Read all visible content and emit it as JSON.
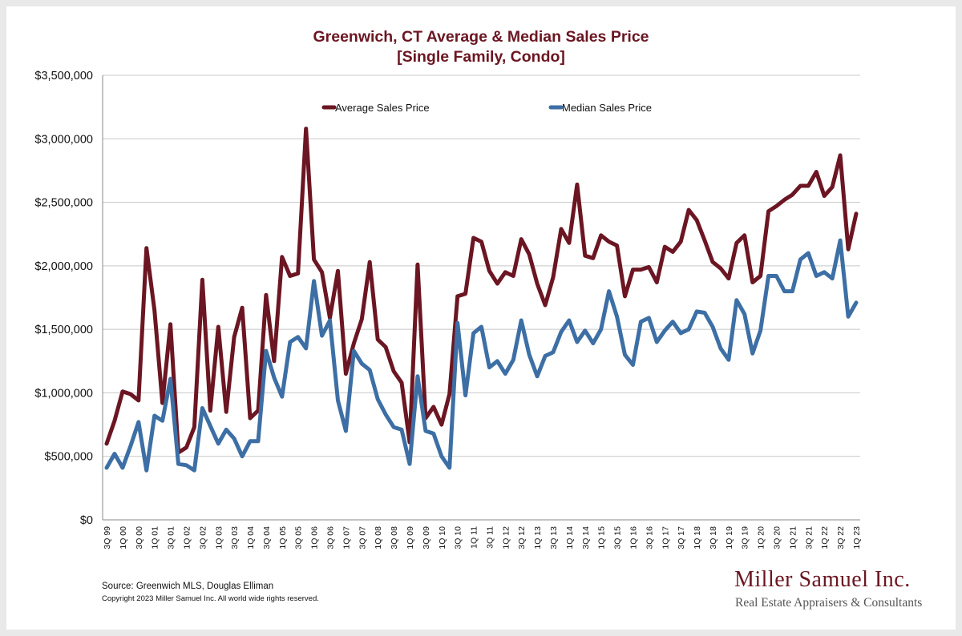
{
  "title_line1": "Greenwich, CT Average & Median Sales Price",
  "title_line2": "[Single Family, Condo]",
  "source": "Source: Greenwich MLS, Douglas Elliman",
  "copyright": "Copyright 2023 Miller Samuel Inc.  All world wide rights reserved.",
  "logo": {
    "name": "Miller Samuel Inc.",
    "tagline": "Real Estate Appraisers & Consultants"
  },
  "colors": {
    "average": "#6b1622",
    "median": "#3d6fa5",
    "grid": "#c8c8c8"
  },
  "chart_data": {
    "type": "line",
    "title": "Greenwich, CT Average & Median Sales Price [Single Family, Condo]",
    "ylim": [
      0,
      3500000
    ],
    "grid": "horizontal",
    "legend_position": "top-center",
    "y_ticks": [
      {
        "value": 0,
        "label": "$0"
      },
      {
        "value": 500000,
        "label": "$500,000"
      },
      {
        "value": 1000000,
        "label": "$1,000,000"
      },
      {
        "value": 1500000,
        "label": "$1,500,000"
      },
      {
        "value": 2000000,
        "label": "$2,000,000"
      },
      {
        "value": 2500000,
        "label": "$2,500,000"
      },
      {
        "value": 3000000,
        "label": "$3,000,000"
      },
      {
        "value": 3500000,
        "label": "$3,500,000"
      }
    ],
    "x_tick_labels": [
      {
        "index": 0,
        "label": "3Q 99"
      },
      {
        "index": 2,
        "label": "1Q 00"
      },
      {
        "index": 4,
        "label": "3Q 00"
      },
      {
        "index": 6,
        "label": "1Q 01"
      },
      {
        "index": 8,
        "label": "3Q 01"
      },
      {
        "index": 10,
        "label": "1Q 02"
      },
      {
        "index": 12,
        "label": "3Q 02"
      },
      {
        "index": 14,
        "label": "1Q 03"
      },
      {
        "index": 16,
        "label": "3Q 03"
      },
      {
        "index": 18,
        "label": "1Q 04"
      },
      {
        "index": 20,
        "label": "3Q 04"
      },
      {
        "index": 22,
        "label": "1Q 05"
      },
      {
        "index": 24,
        "label": "3Q 05"
      },
      {
        "index": 26,
        "label": "1Q 06"
      },
      {
        "index": 28,
        "label": "3Q 06"
      },
      {
        "index": 30,
        "label": "1Q 07"
      },
      {
        "index": 32,
        "label": "3Q 07"
      },
      {
        "index": 34,
        "label": "1Q 08"
      },
      {
        "index": 36,
        "label": "3Q 08"
      },
      {
        "index": 38,
        "label": "1Q 09"
      },
      {
        "index": 40,
        "label": "3Q 09"
      },
      {
        "index": 42,
        "label": "1Q 10"
      },
      {
        "index": 44,
        "label": "3Q 10"
      },
      {
        "index": 46,
        "label": "1Q 11"
      },
      {
        "index": 48,
        "label": "3Q 11"
      },
      {
        "index": 50,
        "label": "1Q 12"
      },
      {
        "index": 52,
        "label": "3Q 12"
      },
      {
        "index": 54,
        "label": "1Q 13"
      },
      {
        "index": 56,
        "label": "3Q 13"
      },
      {
        "index": 58,
        "label": "1Q 14"
      },
      {
        "index": 60,
        "label": "3Q 14"
      },
      {
        "index": 62,
        "label": "1Q 15"
      },
      {
        "index": 64,
        "label": "3Q 15"
      },
      {
        "index": 66,
        "label": "1Q 16"
      },
      {
        "index": 68,
        "label": "3Q 16"
      },
      {
        "index": 70,
        "label": "1Q 17"
      },
      {
        "index": 72,
        "label": "3Q 17"
      },
      {
        "index": 74,
        "label": "1Q 18"
      },
      {
        "index": 76,
        "label": "3Q 18"
      },
      {
        "index": 78,
        "label": "1Q 19"
      },
      {
        "index": 80,
        "label": "3Q 19"
      },
      {
        "index": 82,
        "label": "1Q 20"
      },
      {
        "index": 84,
        "label": "3Q 20"
      },
      {
        "index": 86,
        "label": "1Q 21"
      },
      {
        "index": 88,
        "label": "3Q 21"
      },
      {
        "index": 90,
        "label": "1Q 22"
      },
      {
        "index": 92,
        "label": "3Q 22"
      },
      {
        "index": 94,
        "label": "1Q 23"
      }
    ],
    "series": [
      {
        "name": "Average Sales Price",
        "values": [
          600000,
          780000,
          1010000,
          990000,
          940000,
          2140000,
          1650000,
          920000,
          1540000,
          530000,
          570000,
          730000,
          1890000,
          860000,
          1520000,
          850000,
          1440000,
          1670000,
          800000,
          860000,
          1770000,
          1250000,
          2070000,
          1920000,
          1940000,
          3080000,
          2050000,
          1950000,
          1590000,
          1960000,
          1150000,
          1390000,
          1580000,
          2030000,
          1420000,
          1360000,
          1170000,
          1080000,
          610000,
          2010000,
          800000,
          890000,
          750000,
          990000,
          1760000,
          1780000,
          2220000,
          2190000,
          1960000,
          1860000,
          1950000,
          1920000,
          2210000,
          2090000,
          1860000,
          1690000,
          1910000,
          2290000,
          2180000,
          2640000,
          2080000,
          2060000,
          2240000,
          2190000,
          2160000,
          1760000,
          1970000,
          1970000,
          1990000,
          1870000,
          2150000,
          2110000,
          2190000,
          2440000,
          2360000,
          2200000,
          2030000,
          1980000,
          1900000,
          2180000,
          2240000,
          1870000,
          1920000,
          2430000,
          2470000,
          2520000,
          2560000,
          2630000,
          2630000,
          2740000,
          2550000,
          2620000,
          2870000,
          2130000,
          2410000
        ]
      },
      {
        "name": "Median Sales Price",
        "values": [
          410000,
          520000,
          410000,
          580000,
          770000,
          390000,
          820000,
          780000,
          1110000,
          440000,
          430000,
          390000,
          880000,
          740000,
          600000,
          710000,
          640000,
          500000,
          620000,
          620000,
          1330000,
          1120000,
          970000,
          1400000,
          1440000,
          1350000,
          1880000,
          1450000,
          1570000,
          940000,
          700000,
          1330000,
          1230000,
          1180000,
          950000,
          830000,
          730000,
          710000,
          440000,
          1130000,
          700000,
          680000,
          500000,
          410000,
          1550000,
          980000,
          1470000,
          1520000,
          1200000,
          1250000,
          1150000,
          1260000,
          1570000,
          1300000,
          1130000,
          1290000,
          1320000,
          1480000,
          1570000,
          1400000,
          1490000,
          1390000,
          1500000,
          1800000,
          1600000,
          1300000,
          1220000,
          1560000,
          1590000,
          1400000,
          1490000,
          1560000,
          1470000,
          1500000,
          1640000,
          1630000,
          1520000,
          1350000,
          1260000,
          1730000,
          1620000,
          1310000,
          1490000,
          1920000,
          1920000,
          1800000,
          1800000,
          2050000,
          2100000,
          1920000,
          1950000,
          1900000,
          2200000,
          1600000,
          1710000
        ]
      }
    ]
  }
}
